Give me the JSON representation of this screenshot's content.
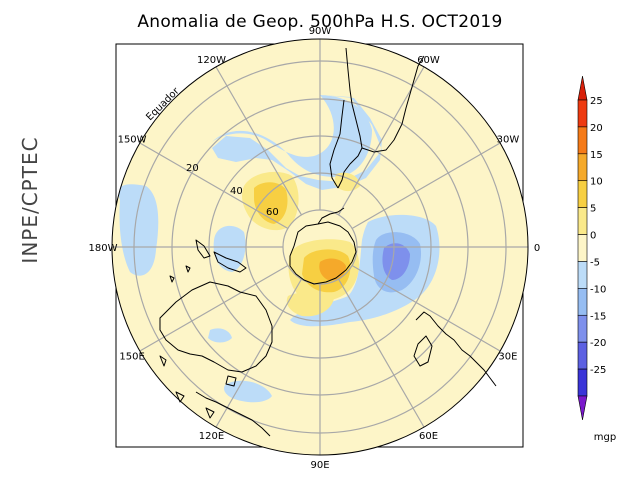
{
  "title": "Anomalia de Geop. 500hPa H.S. OCT2019",
  "side_label": "INPE/CPTEC",
  "equator_label": "Equador",
  "longitudes": [
    {
      "text": "0",
      "deg": 0
    },
    {
      "text": "30E",
      "deg": -30
    },
    {
      "text": "60E",
      "deg": -60
    },
    {
      "text": "90E",
      "deg": -90
    },
    {
      "text": "120E",
      "deg": -120
    },
    {
      "text": "150E",
      "deg": -150
    },
    {
      "text": "180W",
      "deg": 180
    },
    {
      "text": "150W",
      "deg": 150
    },
    {
      "text": "120W",
      "deg": 120
    },
    {
      "text": "90W",
      "deg": 90
    },
    {
      "text": "60W",
      "deg": 60
    },
    {
      "text": "30W",
      "deg": 30
    }
  ],
  "latitude_labels": [
    "20",
    "40",
    "60"
  ],
  "colorbar": {
    "unit": "mgp",
    "ticks": [
      "25",
      "20",
      "15",
      "10",
      "5",
      "0",
      "-5",
      "-10",
      "-15",
      "-20",
      "-25"
    ],
    "colors": [
      "#ee3a10",
      "#f57a18",
      "#f5a92a",
      "#f7cf42",
      "#fae98a",
      "#fdf5c8",
      "#bcdcf8",
      "#96bdf2",
      "#7e90ec",
      "#5c60e2",
      "#3a34d8"
    ],
    "top_arrow": "#d8200a",
    "bottom_arrow": "#7a18cc"
  },
  "colors": {
    "background": "#fdf5c8",
    "frame": "#000000",
    "grid": "#a8a8a8",
    "coast": "#000000"
  }
}
